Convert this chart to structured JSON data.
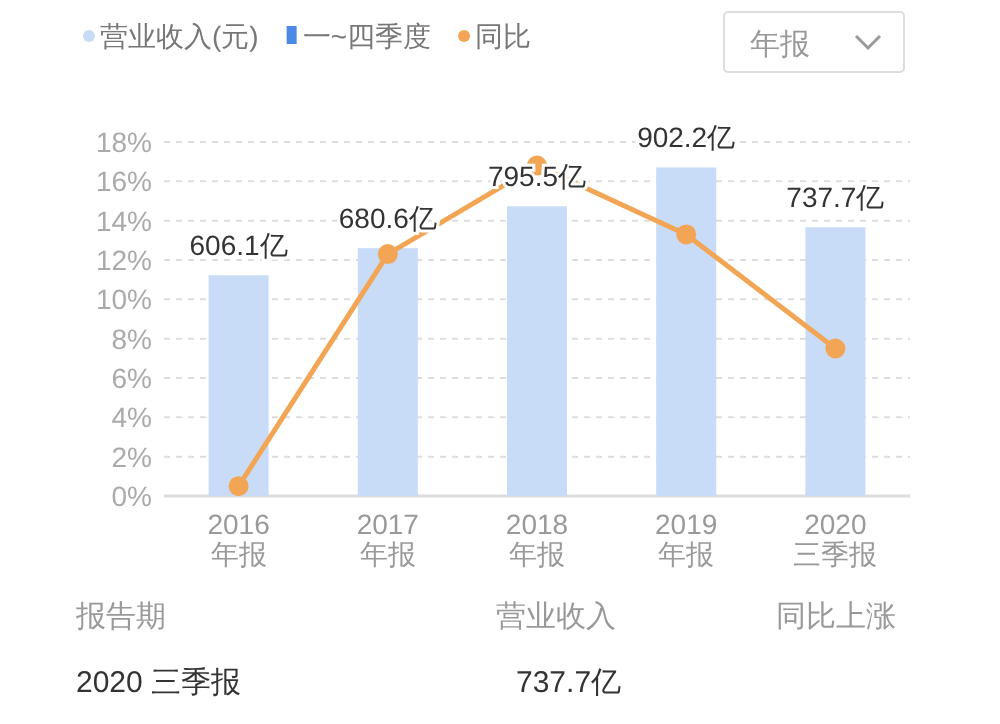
{
  "chart_data": {
    "type": "bar",
    "categories": [
      "2016\n年报",
      "2017\n年报",
      "2018\n年报",
      "2019\n年报",
      "2020\n三季报"
    ],
    "series": [
      {
        "name": "营业收入(元)",
        "axis": "y2",
        "color": "#c8dcf7",
        "values": [
          606.1,
          680.6,
          795.5,
          902.2,
          737.7
        ],
        "value_labels": [
          "606.1亿",
          "680.6亿",
          "795.5亿",
          "902.2亿",
          "737.7亿"
        ]
      },
      {
        "name": "一~四季度",
        "axis": "y2",
        "color": "#4a8ae6",
        "values": [
          null,
          null,
          null,
          null,
          null
        ]
      },
      {
        "name": "同比",
        "type": "line",
        "axis": "y",
        "color": "#f2a655",
        "values": [
          0.5,
          12.3,
          16.8,
          13.3,
          7.5
        ]
      }
    ],
    "ylim": [
      0,
      18
    ],
    "yticks": [
      {
        "value": 0,
        "label": "0%"
      },
      {
        "value": 2,
        "label": "2%"
      },
      {
        "value": 4,
        "label": "4%"
      },
      {
        "value": 6,
        "label": "6%"
      },
      {
        "value": 8,
        "label": "8%"
      },
      {
        "value": 10,
        "label": "10%"
      },
      {
        "value": 12,
        "label": "12%"
      },
      {
        "value": 14,
        "label": "14%"
      },
      {
        "value": 16,
        "label": "16%"
      },
      {
        "value": 18,
        "label": "18%"
      }
    ],
    "y2lim": [
      0,
      972
    ],
    "grid": "y",
    "legend": "top left",
    "marker": "circle",
    "annotations": [
      "年报",
      "报告期",
      "营业收入",
      "同比上涨",
      "2020 三季报",
      "737.7亿"
    ]
  }
}
